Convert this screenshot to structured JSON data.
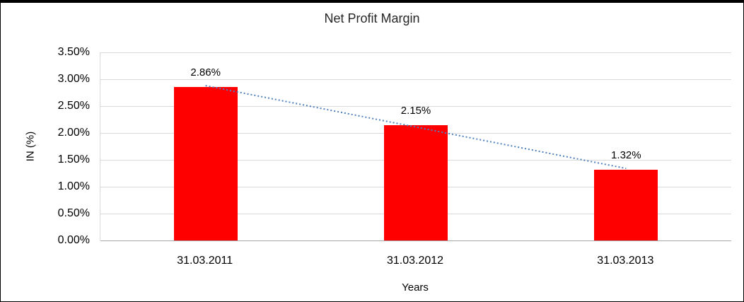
{
  "chart_data": {
    "type": "bar",
    "title": "Net Profit Margin",
    "categories": [
      "31.03.2011",
      "31.03.2012",
      "31.03.2013"
    ],
    "values": [
      2.86,
      2.15,
      1.32
    ],
    "data_labels": [
      "2.86%",
      "2.15%",
      "1.32%"
    ],
    "xlabel": "Years",
    "ylabel": "IN (%)",
    "ylim": [
      0,
      3.5
    ],
    "ytick_step": 0.5,
    "ytick_labels": [
      "0.00%",
      "0.50%",
      "1.00%",
      "1.50%",
      "2.00%",
      "2.50%",
      "3.00%",
      "3.50%"
    ],
    "grid": true,
    "legend": "none",
    "bar_color": "#FF0000",
    "trendline": {
      "style": "dotted",
      "color": "#4F81BD",
      "from_value": 2.88,
      "to_value": 1.34
    }
  }
}
